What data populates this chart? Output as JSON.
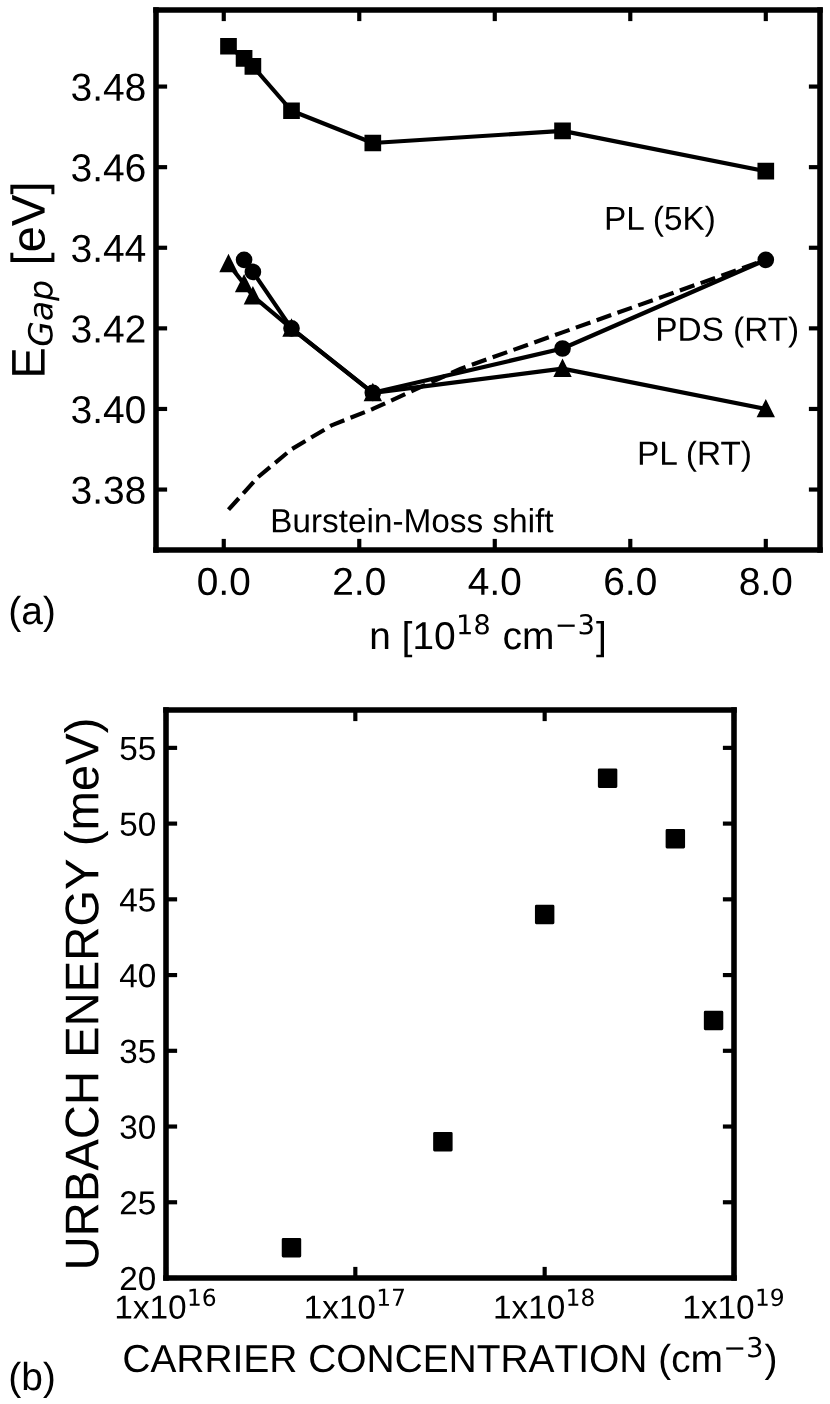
{
  "chart_data": [
    {
      "type": "line",
      "xlabel": "n [10$^{18}$ cm$^{−3}$]",
      "ylabel": "E$_{Gap}$ [eV]",
      "xlim": [
        -1,
        8.8
      ],
      "ylim": [
        3.365,
        3.499
      ],
      "xticks": [
        {
          "value": 0,
          "label": "0.0"
        },
        {
          "value": 2,
          "label": "2.0"
        },
        {
          "value": 4,
          "label": "4.0"
        },
        {
          "value": 6,
          "label": "6.0"
        },
        {
          "value": 8,
          "label": "8.0"
        }
      ],
      "yticks": [
        3.38,
        {
          "value": 3.4,
          "label": "3.40"
        },
        3.42,
        3.44,
        3.46,
        3.48
      ],
      "grid": false,
      "legend": "right",
      "annotations": [
        "(a)"
      ],
      "series": [
        {
          "name": "PL (5K)",
          "color": "#000000",
          "marker": "square",
          "line_style": "solid",
          "x": [
            0.07,
            0.3,
            0.43,
            1.0,
            2.2,
            5.0,
            8.0
          ],
          "values": [
            3.49,
            3.487,
            3.485,
            3.474,
            3.466,
            3.469,
            3.459
          ]
        },
        {
          "name": "PDS (RT)",
          "color": "#000000",
          "marker": "circle",
          "line_style": "solid",
          "x": [
            0.3,
            0.43,
            1.0,
            2.2,
            5.0,
            8.0
          ],
          "values": [
            3.437,
            3.434,
            3.42,
            3.404,
            3.415,
            3.437
          ]
        },
        {
          "name": "PL (RT)",
          "color": "#000000",
          "marker": "triangle",
          "line_style": "solid",
          "x": [
            0.07,
            0.3,
            0.43,
            1.0,
            2.2,
            5.0,
            8.0
          ],
          "values": [
            3.436,
            3.431,
            3.428,
            3.42,
            3.404,
            3.41,
            3.4
          ]
        },
        {
          "name": "Burstein-Moss shift",
          "color": "#000000",
          "marker": "none",
          "line_style": "dashed",
          "x": [
            0.07,
            0.5,
            1.0,
            1.6,
            2.2,
            3.5,
            5.0,
            6.5,
            8.0
          ],
          "values": [
            3.375,
            3.383,
            3.39,
            3.396,
            3.4,
            3.41,
            3.419,
            3.428,
            3.437
          ]
        }
      ]
    },
    {
      "type": "scatter",
      "xlabel": "CARRIER CONCENTRATION (cm$^{−3}$)",
      "ylabel": "URBACH ENERGY (meV)",
      "log": "x",
      "xlim": [
        1e+16,
        1e+19
      ],
      "ylim": [
        20,
        57.5
      ],
      "xticks": [
        {
          "value": 1e+16,
          "label": "1x10$^{16}$"
        },
        {
          "value": 1e+17,
          "label": "1x10$^{17}$"
        },
        {
          "value": 1e+18,
          "label": "1x10$^{18}$"
        },
        {
          "value": 1e+19,
          "label": "1x10$^{19}$"
        }
      ],
      "yticks": [
        20,
        25,
        30,
        35,
        40,
        45,
        50,
        55
      ],
      "grid": false,
      "marker": "square",
      "annotations": [
        "(b)"
      ],
      "series": [
        {
          "color": "#000000",
          "x": [
            4.6e+16,
            2.9e+17,
            1e+18,
            2.15e+18,
            4.9e+18,
            7.8e+18
          ],
          "values": [
            22,
            29,
            44,
            53,
            49,
            37
          ]
        }
      ]
    }
  ]
}
